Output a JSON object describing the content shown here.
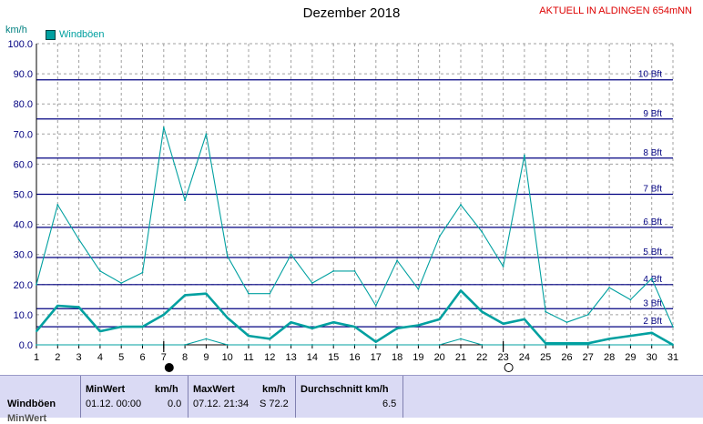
{
  "header": {
    "title": "Dezember 2018",
    "station": "AKTUELL IN ALDINGEN 654mNN",
    "y_unit": "km/h",
    "legend_label": "Windböen"
  },
  "colors": {
    "series": "#00a0a0",
    "beaufort_line": "#000080",
    "station_text": "#dd0000",
    "stats_bg": "#dadaf4"
  },
  "chart_data": {
    "type": "line",
    "title": "Dezember 2018",
    "ylabel": "km/h",
    "x": [
      1,
      2,
      3,
      4,
      5,
      6,
      7,
      8,
      9,
      10,
      11,
      12,
      13,
      14,
      15,
      16,
      17,
      18,
      19,
      20,
      21,
      22,
      23,
      24,
      25,
      26,
      27,
      28,
      29,
      30,
      31
    ],
    "ylim": [
      0,
      100
    ],
    "yticks": [
      "0.0",
      "10.0",
      "20.0",
      "30.0",
      "40.0",
      "50.0",
      "60.0",
      "70.0",
      "80.0",
      "90.0",
      "100.0"
    ],
    "series": [
      {
        "name": "Windböen",
        "role": "max",
        "values": [
          20,
          46.5,
          35,
          24.5,
          20.5,
          24,
          72.2,
          48,
          70,
          29.5,
          17,
          17,
          30,
          20.5,
          24.5,
          24.5,
          13,
          28,
          18.5,
          36,
          46.5,
          37.5,
          26,
          63,
          11,
          7.5,
          10,
          19,
          15,
          22,
          6
        ]
      },
      {
        "role": "average",
        "values": [
          4.5,
          13,
          12.5,
          4.5,
          6,
          6,
          10,
          16.5,
          17,
          9,
          3,
          2,
          7.5,
          5.5,
          7.5,
          6,
          1,
          5.5,
          6.5,
          8.5,
          18,
          11,
          7,
          8.5,
          0.5,
          0.5,
          0.5,
          2,
          3,
          4,
          0
        ]
      },
      {
        "role": "min",
        "values": [
          0,
          0,
          0,
          0,
          0,
          0,
          0,
          0,
          2,
          0,
          0,
          0,
          0,
          0,
          0,
          0,
          0,
          0,
          0,
          0,
          2,
          0,
          0,
          0,
          0,
          0,
          0,
          0,
          0,
          0,
          0
        ]
      }
    ],
    "beaufort_lines": [
      {
        "label": "2 Bft",
        "value": 6
      },
      {
        "label": "3 Bft",
        "value": 12
      },
      {
        "label": "4 Bft",
        "value": 20
      },
      {
        "label": "5 Bft",
        "value": 29
      },
      {
        "label": "6 Bft",
        "value": 39
      },
      {
        "label": "7 Bft",
        "value": 50
      },
      {
        "label": "8 Bft",
        "value": 62
      },
      {
        "label": "9 Bft",
        "value": 75
      },
      {
        "label": "10 Bft",
        "value": 88
      }
    ],
    "moon_phases": [
      {
        "day": 7,
        "phase": "new"
      },
      {
        "day": 23,
        "phase": "full"
      }
    ],
    "grid": true
  },
  "stats": {
    "row_label": "Windböen",
    "row2_label": "MinWert",
    "min_header": "MinWert",
    "min_unit_header": "km/h",
    "min_time": "01.12.  00:00",
    "min_value": "0.0",
    "max_header": "MaxWert",
    "max_unit_header": "km/h",
    "max_time": "07.12.  21:34",
    "max_value": "S 72.2",
    "avg_header": "Durchschnitt km/h",
    "avg_value": "6.5"
  }
}
